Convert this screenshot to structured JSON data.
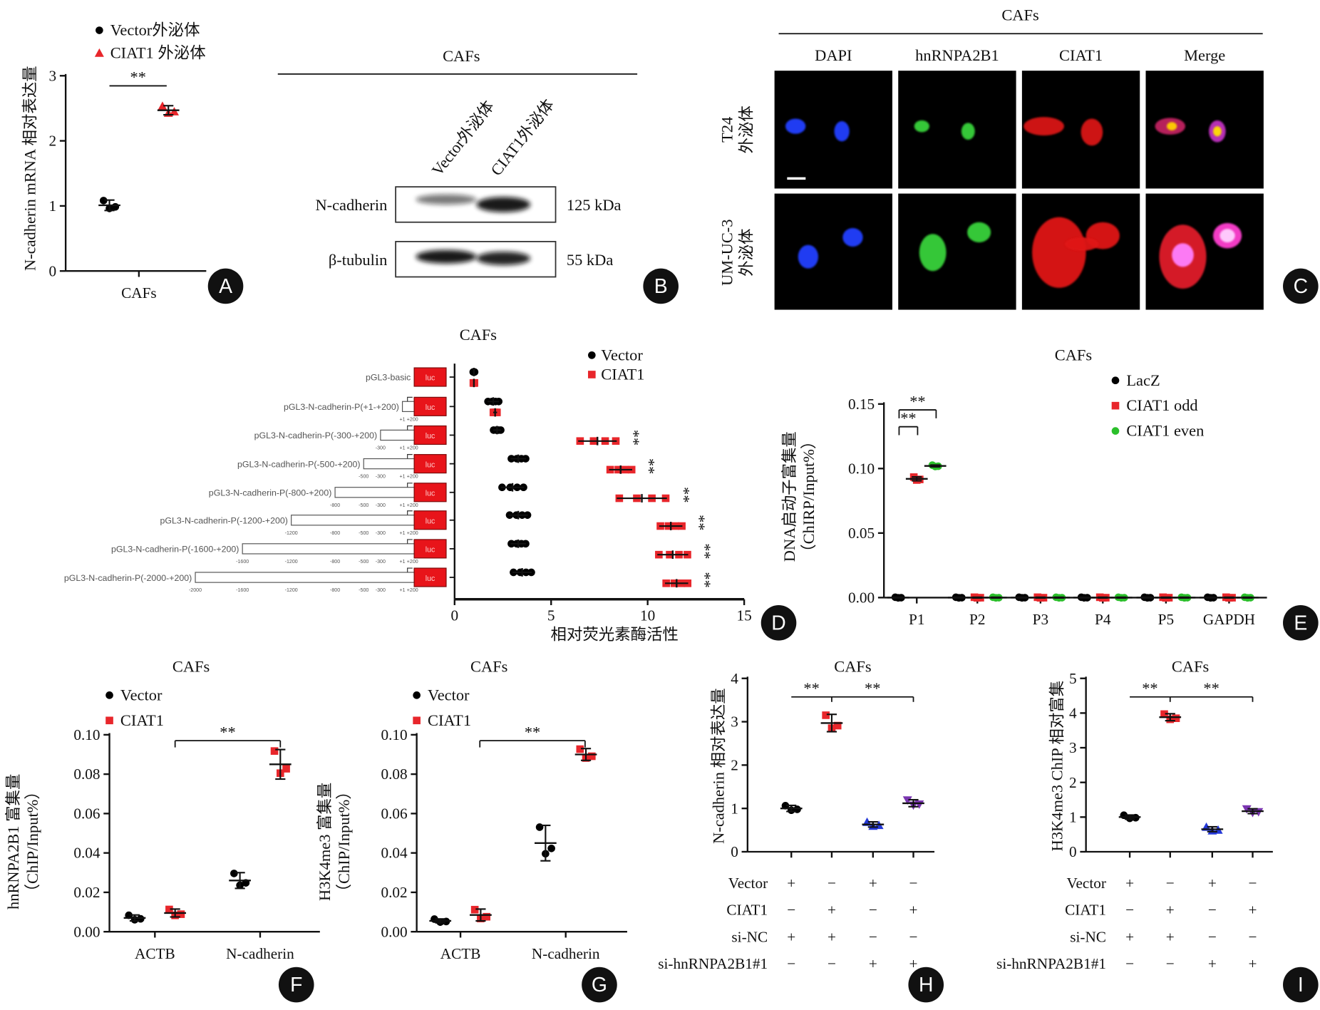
{
  "panel_letters": [
    "A",
    "B",
    "C",
    "D",
    "E",
    "F",
    "G",
    "H",
    "I"
  ],
  "blot": {
    "title": "CAFs",
    "lanes": [
      "Vector外泌体",
      "CIAT1外泌体"
    ],
    "rows": [
      {
        "label": "N-cadherin",
        "size": "125 kDa"
      },
      {
        "label": "β-tubulin",
        "size": "55 kDa"
      }
    ]
  },
  "imaging": {
    "title": "CAFs",
    "channels": [
      "DAPI",
      "hnRNPA2B1",
      "CIAT1",
      "Merge"
    ],
    "rows": [
      {
        "line1": "T24",
        "line2": "外泌体"
      },
      {
        "line1": "UM-UC-3",
        "line2": "外泌体"
      }
    ]
  },
  "chart_data": [
    {
      "panel": "A",
      "type": "scatter",
      "title": "",
      "ylabel": "N-cadherin mRNA 相对表达量",
      "categories": [
        "CAFs"
      ],
      "yticks": [
        "0",
        "1",
        "2",
        "3"
      ],
      "ylim": [
        0,
        3
      ],
      "legend_position": "top",
      "series": [
        {
          "name": "Vector外泌体",
          "color": "#000000",
          "marker": "circle",
          "values": [
            1.01
          ],
          "sd": [
            0.08
          ]
        },
        {
          "name": "CIAT1 外泌体",
          "color": "#e8262b",
          "marker": "triangle",
          "values": [
            2.47
          ],
          "sd": [
            0.07
          ]
        }
      ],
      "significance": [
        "**"
      ]
    },
    {
      "panel": "D",
      "type": "scatter",
      "orientation": "horizontal",
      "title": "CAFs",
      "xlabel": "相对荧光素酶活性",
      "xticks": [
        "0",
        "5",
        "10",
        "15"
      ],
      "xlim": [
        0,
        15
      ],
      "reporter_label": "luc",
      "categories": [
        "pGL3-basic",
        "pGL3-N-cadherin-P(+1-+200)",
        "pGL3-N-cadherin-P(-300-+200)",
        "pGL3-N-cadherin-P(-500-+200)",
        "pGL3-N-cadherin-P(-800-+200)",
        "pGL3-N-cadherin-P(-1200-+200)",
        "pGL3-N-cadherin-P(-1600-+200)",
        "pGL3-N-cadherin-P(-2000-+200)"
      ],
      "construct_coords": [
        [],
        [
          "+1",
          "+200"
        ],
        [
          "-300",
          "+1",
          "+200"
        ],
        [
          "-500",
          "-300",
          "+1",
          "+200"
        ],
        [
          "-800",
          "-500",
          "-300",
          "+1",
          "+200"
        ],
        [
          "-1200",
          "-800",
          "-500",
          "-300",
          "+1",
          "+200"
        ],
        [
          "-1600",
          "-1200",
          "-800",
          "-500",
          "-300",
          "+1",
          "+200"
        ],
        [
          "-2000",
          "-1600",
          "-1200",
          "-800",
          "-500",
          "-300",
          "+1",
          "+200"
        ]
      ],
      "legend_position": "top-right",
      "series": [
        {
          "name": "Vector",
          "color": "#000000",
          "marker": "circle",
          "values": [
            1.0,
            2.0,
            2.2,
            3.3,
            3.0,
            3.3,
            3.3,
            3.5
          ],
          "sd": [
            0.04,
            0.3,
            0.2,
            0.4,
            0.6,
            0.5,
            0.4,
            0.5
          ]
        },
        {
          "name": "CIAT1",
          "color": "#e8262b",
          "marker": "square",
          "values": [
            1.0,
            2.1,
            7.4,
            8.6,
            9.7,
            11.2,
            11.3,
            11.5
          ],
          "sd": [
            0.03,
            0.1,
            1.0,
            0.6,
            1.3,
            0.6,
            0.8,
            0.6
          ]
        }
      ],
      "significance": [
        "",
        "",
        "**",
        "**",
        "**",
        "**",
        "**",
        "**"
      ]
    },
    {
      "panel": "E",
      "type": "scatter",
      "title": "CAFs",
      "ylabel": "DNA启动子富集量",
      "ylabel2": "（ChIRP/Input%）",
      "categories": [
        "P1",
        "P2",
        "P3",
        "P4",
        "P5",
        "GAPDH"
      ],
      "yticks": [
        "0.00",
        "0.05",
        "0.10",
        "0.15"
      ],
      "ylim": [
        0,
        0.15
      ],
      "legend_position": "top-right",
      "series": [
        {
          "name": "LacZ",
          "color": "#000000",
          "marker": "circle",
          "values": [
            0,
            0,
            0,
            0,
            0,
            0
          ],
          "sd": [
            0.0003,
            0.0003,
            0.0003,
            0.0003,
            0.0003,
            0.0003
          ]
        },
        {
          "name": "CIAT1 odd",
          "color": "#e8262b",
          "marker": "square",
          "values": [
            0.092,
            0,
            0,
            0,
            0,
            0
          ],
          "sd": [
            0.0015,
            0.0003,
            0.0003,
            0.0003,
            0.0003,
            0.0003
          ]
        },
        {
          "name": "CIAT1 even",
          "color": "#2bbf2b",
          "marker": "circle",
          "values": [
            0.102,
            0,
            0,
            0,
            0,
            0
          ],
          "sd": [
            0.0007,
            0.0003,
            0.0003,
            0.0003,
            0.0003,
            0.0003
          ]
        }
      ],
      "significance": [
        "**",
        "**"
      ]
    },
    {
      "panel": "F",
      "type": "scatter",
      "title": "CAFs",
      "ylabel": "hnRNPA2B1 富集量",
      "ylabel2": "（ChIP/Input%）",
      "categories": [
        "ACTB",
        "N-cadherin"
      ],
      "yticks": [
        "0.00",
        "0.02",
        "0.04",
        "0.06",
        "0.08",
        "0.10"
      ],
      "ylim": [
        0,
        0.1
      ],
      "legend_position": "top-left",
      "series": [
        {
          "name": "Vector",
          "color": "#000000",
          "marker": "circle",
          "values": [
            0.007,
            0.026
          ],
          "sd": [
            0.0015,
            0.004
          ]
        },
        {
          "name": "CIAT1",
          "color": "#e8262b",
          "marker": "square",
          "values": [
            0.0095,
            0.085
          ],
          "sd": [
            0.002,
            0.0075
          ]
        }
      ],
      "significance": [
        "**"
      ]
    },
    {
      "panel": "G",
      "type": "scatter",
      "title": "CAFs",
      "ylabel": "H3K4me3 富集量",
      "ylabel2": "（ChIP/Input%）",
      "categories": [
        "ACTB",
        "N-cadherin"
      ],
      "yticks": [
        "0.00",
        "0.02",
        "0.04",
        "0.06",
        "0.08",
        "0.10"
      ],
      "ylim": [
        0,
        0.1
      ],
      "legend_position": "top-left",
      "series": [
        {
          "name": "Vector",
          "color": "#000000",
          "marker": "circle",
          "values": [
            0.0055,
            0.045
          ],
          "sd": [
            0.001,
            0.009
          ]
        },
        {
          "name": "CIAT1",
          "color": "#e8262b",
          "marker": "square",
          "values": [
            0.0085,
            0.09
          ],
          "sd": [
            0.003,
            0.003
          ]
        }
      ],
      "significance": [
        "**"
      ]
    },
    {
      "panel": "H",
      "type": "scatter",
      "title": "CAFs",
      "ylabel": "N-cadherin 相对表达量",
      "categories": [
        ""
      ],
      "yticks": [
        "0",
        "1",
        "2",
        "3",
        "4"
      ],
      "ylim": [
        0,
        4
      ],
      "series": [
        {
          "name": "Vector+si-NC",
          "color": "#000000",
          "marker": "circle",
          "values": [
            1.0
          ],
          "sd": [
            0.07
          ]
        },
        {
          "name": "CIAT1+si-NC",
          "color": "#e8262b",
          "marker": "square",
          "values": [
            2.97
          ],
          "sd": [
            0.2
          ]
        },
        {
          "name": "Vector+si-hnRNPA2B1#1",
          "color": "#2438d8",
          "marker": "triangle",
          "values": [
            0.63
          ],
          "sd": [
            0.06
          ]
        },
        {
          "name": "CIAT1+si-hnRNPA2B1#1",
          "color": "#7a35b0",
          "marker": "invtriangle",
          "values": [
            1.12
          ],
          "sd": [
            0.08
          ]
        }
      ],
      "treatments": [
        {
          "label": "Vector",
          "values": [
            "+",
            "−",
            "+",
            "−"
          ]
        },
        {
          "label": "CIAT1",
          "values": [
            "−",
            "+",
            "−",
            "+"
          ]
        },
        {
          "label": "si-NC",
          "values": [
            "+",
            "+",
            "−",
            "−"
          ]
        },
        {
          "label": "si-hnRNPA2B1#1",
          "values": [
            "−",
            "−",
            "+",
            "+"
          ]
        }
      ],
      "significance": [
        "**",
        "**"
      ]
    },
    {
      "panel": "I",
      "type": "scatter",
      "title": "CAFs",
      "ylabel": "H3K4me3 ChIP 相对富集",
      "categories": [
        ""
      ],
      "yticks": [
        "0",
        "1",
        "2",
        "3",
        "4",
        "5"
      ],
      "ylim": [
        0,
        5
      ],
      "series": [
        {
          "name": "Vector+si-NC",
          "color": "#000000",
          "marker": "circle",
          "values": [
            1.0
          ],
          "sd": [
            0.06
          ]
        },
        {
          "name": "CIAT1+si-NC",
          "color": "#e8262b",
          "marker": "square",
          "values": [
            3.88
          ],
          "sd": [
            0.1
          ]
        },
        {
          "name": "Vector+si-hnRNPA2B1#1",
          "color": "#2438d8",
          "marker": "triangle",
          "values": [
            0.65
          ],
          "sd": [
            0.07
          ]
        },
        {
          "name": "CIAT1+si-hnRNPA2B1#1",
          "color": "#7a35b0",
          "marker": "invtriangle",
          "values": [
            1.17
          ],
          "sd": [
            0.07
          ]
        }
      ],
      "treatments": [
        {
          "label": "Vector",
          "values": [
            "+",
            "−",
            "+",
            "−"
          ]
        },
        {
          "label": "CIAT1",
          "values": [
            "−",
            "+",
            "−",
            "+"
          ]
        },
        {
          "label": "si-NC",
          "values": [
            "+",
            "+",
            "−",
            "−"
          ]
        },
        {
          "label": "si-hnRNPA2B1#1",
          "values": [
            "−",
            "−",
            "+",
            "+"
          ]
        }
      ],
      "significance": [
        "**",
        "**"
      ]
    }
  ]
}
